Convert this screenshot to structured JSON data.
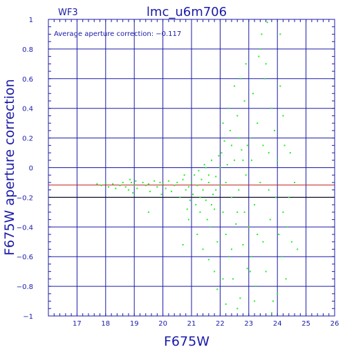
{
  "chart_data": {
    "type": "scatter",
    "title": "lmc_u6m706",
    "chip": "WF3",
    "xlabel": "F675W",
    "ylabel": "F675W aperture correction",
    "annotation": "Average aperture correction: −0.117",
    "average_correction": -0.117,
    "xlim": [
      16,
      26
    ],
    "ylim": [
      -1,
      1
    ],
    "x_ticks": [
      "17",
      "18",
      "19",
      "20",
      "21",
      "22",
      "23",
      "24",
      "25",
      "26"
    ],
    "y_ticks": [
      "−1",
      "−0.8",
      "−0.6",
      "−0.4",
      "−0.2",
      "0",
      "0.2",
      "0.4",
      "0.6",
      "0.8",
      "1"
    ],
    "grid": true,
    "colors": {
      "frame": "#1a1aa8",
      "points": "#22ee22",
      "average_line": "#c02020",
      "zero_line": "#000000"
    },
    "points": [
      [
        17.7,
        -0.11
      ],
      [
        17.85,
        -0.12
      ],
      [
        18.0,
        -0.1
      ],
      [
        18.1,
        -0.13
      ],
      [
        18.25,
        -0.11
      ],
      [
        18.35,
        -0.14
      ],
      [
        18.5,
        -0.12
      ],
      [
        18.6,
        -0.1
      ],
      [
        18.7,
        -0.13
      ],
      [
        18.8,
        -0.15
      ],
      [
        18.9,
        -0.1
      ],
      [
        18.95,
        -0.17
      ],
      [
        19.0,
        -0.12
      ],
      [
        19.05,
        -0.09
      ],
      [
        19.1,
        -0.14
      ],
      [
        18.85,
        -0.08
      ],
      [
        19.3,
        -0.1
      ],
      [
        19.4,
        -0.12
      ],
      [
        19.5,
        -0.11
      ],
      [
        19.55,
        -0.16
      ],
      [
        19.7,
        -0.09
      ],
      [
        19.8,
        -0.13
      ],
      [
        19.9,
        -0.1
      ],
      [
        19.95,
        -0.18
      ],
      [
        19.5,
        -0.3
      ],
      [
        20.0,
        -0.11
      ],
      [
        20.1,
        -0.14
      ],
      [
        20.2,
        -0.09
      ],
      [
        20.3,
        -0.16
      ],
      [
        20.4,
        -0.12
      ],
      [
        20.5,
        -0.1
      ],
      [
        20.6,
        -0.2
      ],
      [
        20.7,
        -0.08
      ],
      [
        20.8,
        -0.15
      ],
      [
        20.9,
        -0.13
      ],
      [
        20.95,
        -0.22
      ],
      [
        20.75,
        -0.05
      ],
      [
        20.85,
        -0.28
      ],
      [
        20.7,
        -0.52
      ],
      [
        21.0,
        -0.1
      ],
      [
        21.05,
        -0.18
      ],
      [
        21.1,
        -0.05
      ],
      [
        21.15,
        -0.25
      ],
      [
        21.2,
        -0.12
      ],
      [
        21.25,
        -0.02
      ],
      [
        21.3,
        -0.3
      ],
      [
        21.35,
        -0.08
      ],
      [
        21.4,
        -0.15
      ],
      [
        21.45,
        0.02
      ],
      [
        21.5,
        -0.22
      ],
      [
        21.55,
        -0.35
      ],
      [
        21.6,
        -0.1
      ],
      [
        21.65,
        -0.4
      ],
      [
        21.7,
        0.05
      ],
      [
        21.75,
        -0.18
      ],
      [
        21.8,
        -0.28
      ],
      [
        21.85,
        -0.06
      ],
      [
        21.9,
        -0.5
      ],
      [
        21.95,
        0.08
      ],
      [
        21.2,
        -0.45
      ],
      [
        21.4,
        -0.55
      ],
      [
        21.6,
        -0.62
      ],
      [
        21.8,
        -0.7
      ],
      [
        21.9,
        -0.82
      ],
      [
        22.0,
        -0.12
      ],
      [
        22.05,
        0.1
      ],
      [
        22.1,
        -0.3
      ],
      [
        22.15,
        0.18
      ],
      [
        22.2,
        -0.45
      ],
      [
        22.25,
        0.02
      ],
      [
        22.3,
        -0.6
      ],
      [
        22.35,
        0.25
      ],
      [
        22.4,
        -0.2
      ],
      [
        22.45,
        -0.75
      ],
      [
        22.5,
        0.05
      ],
      [
        22.55,
        -0.38
      ],
      [
        22.6,
        0.35
      ],
      [
        22.65,
        -0.15
      ],
      [
        22.7,
        -0.88
      ],
      [
        22.75,
        0.12
      ],
      [
        22.8,
        -0.52
      ],
      [
        22.85,
        0.45
      ],
      [
        22.9,
        -0.05
      ],
      [
        22.95,
        -0.68
      ],
      [
        22.1,
        0.3
      ],
      [
        22.3,
        0.4
      ],
      [
        22.5,
        0.55
      ],
      [
        22.7,
        0.6
      ],
      [
        22.9,
        0.7
      ],
      [
        22.2,
        -0.92
      ],
      [
        22.6,
        -0.95
      ],
      [
        22.8,
        0.05
      ],
      [
        22.4,
        0.15
      ],
      [
        22.6,
        -0.3
      ],
      [
        23.0,
        -0.4
      ],
      [
        23.05,
        0.2
      ],
      [
        23.1,
        -0.6
      ],
      [
        23.15,
        0.5
      ],
      [
        23.2,
        -0.25
      ],
      [
        23.25,
        -0.8
      ],
      [
        23.3,
        0.3
      ],
      [
        23.35,
        0.75
      ],
      [
        23.4,
        -0.1
      ],
      [
        23.45,
        0.9
      ],
      [
        23.5,
        -0.5
      ],
      [
        23.55,
        0.6
      ],
      [
        23.6,
        -0.7
      ],
      [
        23.65,
        0.98
      ],
      [
        23.7,
        0.1
      ],
      [
        23.75,
        -0.35
      ],
      [
        23.8,
        0.4
      ],
      [
        23.85,
        -0.9
      ],
      [
        23.9,
        0.25
      ],
      [
        23.95,
        -0.2
      ],
      [
        24.0,
        0.05
      ],
      [
        24.05,
        -0.45
      ],
      [
        24.1,
        0.55
      ],
      [
        24.15,
        -0.6
      ],
      [
        24.2,
        -0.3
      ],
      [
        24.25,
        0.15
      ],
      [
        24.3,
        -0.75
      ],
      [
        24.4,
        -0.2
      ],
      [
        24.45,
        0.1
      ],
      [
        24.5,
        -0.5
      ],
      [
        24.6,
        -0.1
      ],
      [
        24.7,
        -0.55
      ],
      [
        24.1,
        0.9
      ],
      [
        23.4,
        0.8
      ],
      [
        23.6,
        0.7
      ],
      [
        23.2,
        -0.9
      ],
      [
        23.8,
        -0.98
      ],
      [
        24.2,
        0.35
      ],
      [
        24.35,
        -0.4
      ],
      [
        24.0,
        -0.85
      ],
      [
        22.95,
        0.15
      ],
      [
        23.1,
        0.05
      ],
      [
        21.5,
        0.0
      ],
      [
        21.7,
        -0.25
      ],
      [
        22.0,
        0.0
      ],
      [
        22.2,
        -0.1
      ],
      [
        21.3,
        -0.2
      ],
      [
        20.9,
        -0.35
      ],
      [
        22.4,
        -0.55
      ],
      [
        22.1,
        -0.75
      ],
      [
        23.3,
        -0.45
      ],
      [
        23.5,
        0.15
      ],
      [
        23.7,
        -0.15
      ],
      [
        22.85,
        -0.3
      ],
      [
        22.65,
        0.2
      ],
      [
        23.05,
        -0.7
      ],
      [
        21.85,
        -0.15
      ],
      [
        21.6,
        -0.05
      ]
    ]
  }
}
